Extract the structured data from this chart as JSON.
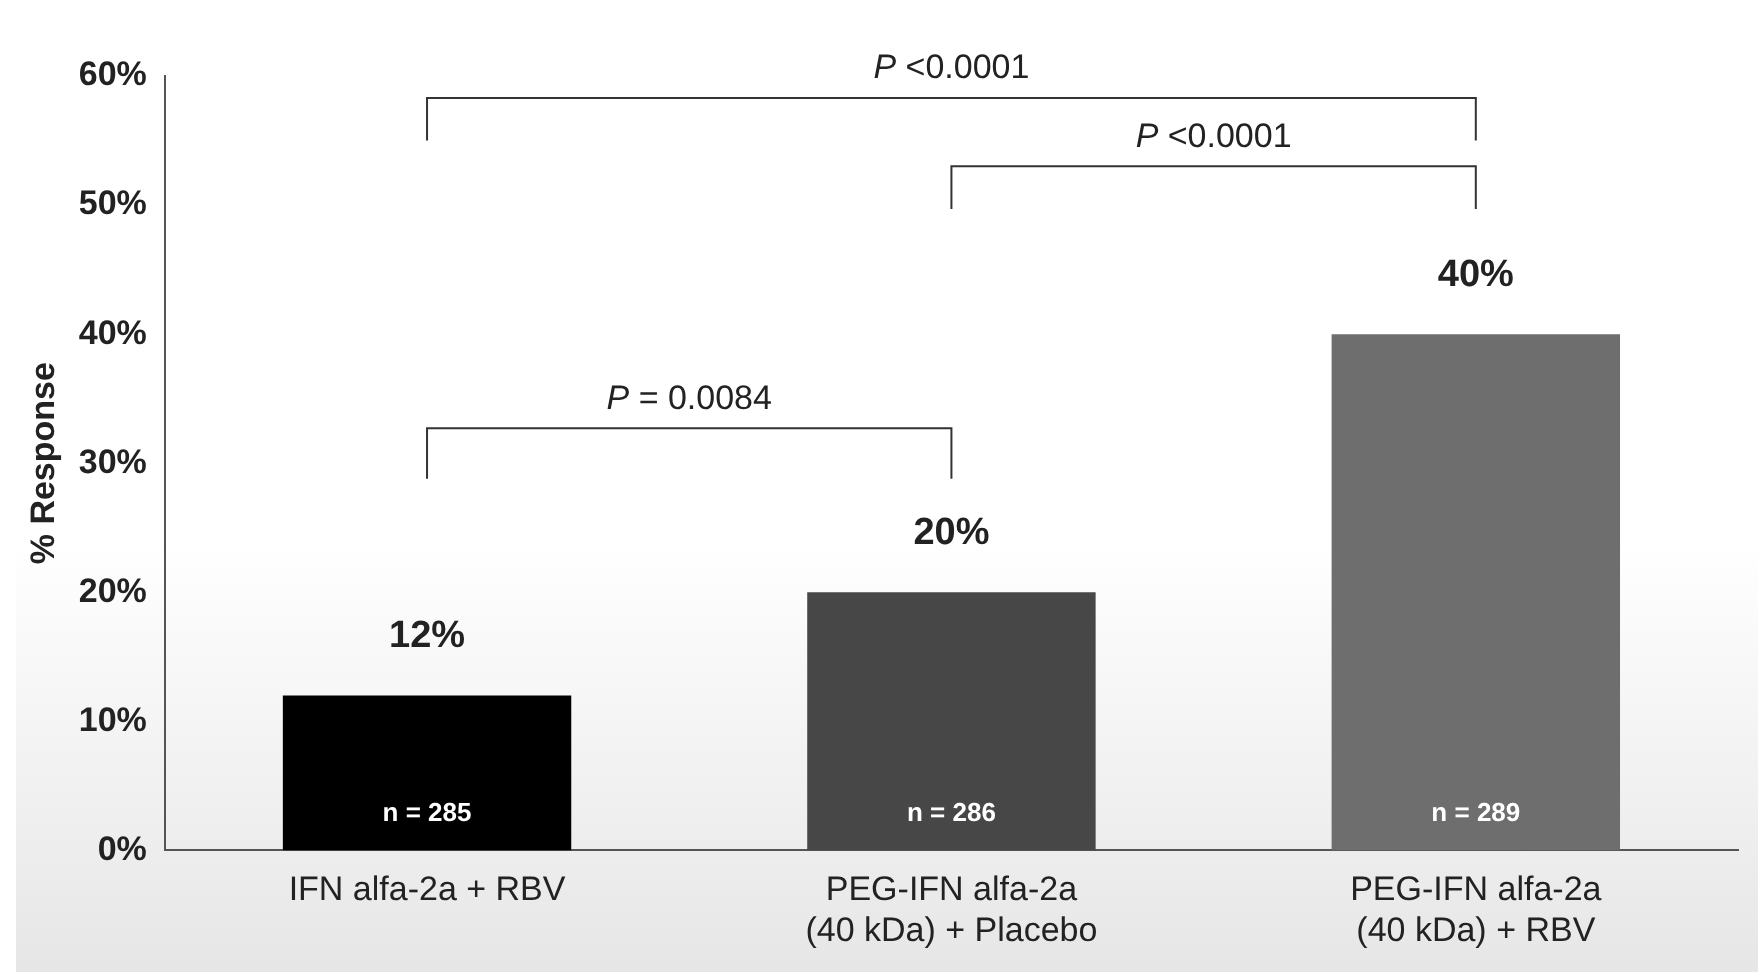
{
  "chart_data": {
    "type": "bar",
    "ylabel": "% Response",
    "categories": [
      "IFN alfa-2a + RBV",
      "PEG-IFN alfa-2a\n(40 kDa) + Placebo",
      "PEG-IFN alfa-2a\n(40 kDa) + RBV"
    ],
    "values": [
      12,
      20,
      40
    ],
    "colors": [
      "#000000",
      "#474747",
      "#6e6e6e"
    ],
    "value_labels": [
      "12%",
      "20%",
      "40%"
    ],
    "ylim": [
      0,
      60
    ],
    "yticks": [
      {
        "value": 0,
        "label": "0%"
      },
      {
        "value": 10,
        "label": "10%"
      },
      {
        "value": 20,
        "label": "20%"
      },
      {
        "value": 30,
        "label": "30%"
      },
      {
        "value": 40,
        "label": "40%"
      },
      {
        "value": 50,
        "label": "50%"
      },
      {
        "value": 60,
        "label": "60%"
      }
    ],
    "grid": false,
    "legend": false,
    "annotations": [
      "P = 0.0084",
      "P <0.0001",
      "P <0.0001",
      "n = 285",
      "n = 286",
      "n = 289"
    ]
  }
}
